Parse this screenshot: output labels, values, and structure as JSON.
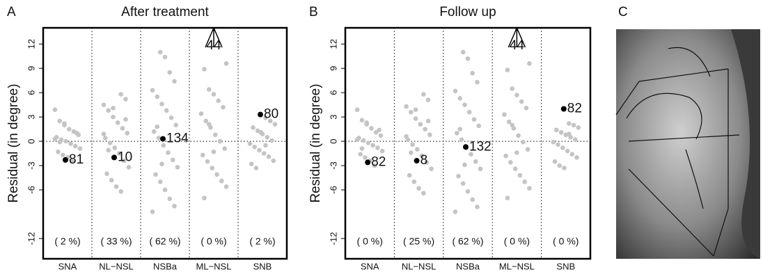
{
  "chart_data": [
    {
      "type": "strip",
      "panel_label": "A",
      "title": "After treatment",
      "y_label": "Residual (in degree)",
      "categories": [
        "SNA",
        "NL−NSL",
        "NSBa",
        "ML−NSL",
        "SNB"
      ],
      "ylim": [
        -14.5,
        14
      ],
      "yticks": [
        -12,
        -6,
        -3,
        0,
        3,
        6,
        9,
        12
      ],
      "color": "#c4c4c4",
      "values": [
        [
          3.9,
          2.5,
          2.0,
          1.5,
          1.2,
          0.8,
          0.5,
          0.2,
          0,
          -0.3,
          -0.6,
          -0.9,
          -1.3,
          -1.7,
          -2.0,
          -2.5,
          1.0,
          0.3,
          -0.1,
          2.2
        ],
        [
          5.8,
          5.2,
          4.5,
          3.8,
          3.0,
          2.3,
          1.6,
          1.0,
          0.4,
          -0.2,
          -0.8,
          -1.5,
          -2.4,
          -3.2,
          -4.0,
          -4.8,
          -5.6,
          -6.2,
          2.7,
          0.9,
          -1.1,
          4.1
        ],
        [
          11,
          10.4,
          8.5,
          7.4,
          6.3,
          5.5,
          4.6,
          3.8,
          2.9,
          2.0,
          1.2,
          0.4,
          -0.5,
          -1.4,
          -2.3,
          -3.2,
          -4.1,
          -5.0,
          -6.0,
          -7.1,
          -8.0,
          -8.7,
          1.8,
          -2.8
        ],
        [
          9.6,
          8.9,
          6.4,
          5.8,
          5.0,
          4.2,
          3.4,
          2.5,
          1.7,
          0.8,
          0,
          -0.9,
          -1.7,
          -2.5,
          -3.3,
          -4.1,
          -4.9,
          -5.6,
          -7.0,
          2.1,
          -1.3
        ],
        [
          2.9,
          2.5,
          2.1,
          1.7,
          1.3,
          0.9,
          0.5,
          0.1,
          -0.3,
          -0.7,
          -1.1,
          -1.5,
          -1.9,
          -2.4,
          -2.8,
          -3.3,
          1.1,
          -0.5
        ]
      ],
      "highlight_values": [
        -2.3,
        -2.0,
        0.3,
        null,
        3.3
      ],
      "highlight_labels": [
        "81",
        "10",
        "134",
        "44",
        "80"
      ],
      "percent_labels": [
        "( 2 %)",
        "( 33 %)",
        "( 62 %)",
        "( 0 %)",
        "( 2 %)"
      ]
    },
    {
      "type": "strip",
      "panel_label": "B",
      "title": "Follow up",
      "y_label": "Residual (in degree)",
      "categories": [
        "SNA",
        "NL−NSL",
        "NSBa",
        "ML−NSL",
        "SNB"
      ],
      "ylim": [
        -14.5,
        14
      ],
      "yticks": [
        -12,
        -6,
        -3,
        0,
        3,
        6,
        9,
        12
      ],
      "color": "#c4c4c4",
      "values": [
        [
          3.9,
          2.6,
          2.1,
          1.6,
          1.1,
          0.7,
          0.4,
          0.1,
          -0.2,
          -0.5,
          -0.8,
          -1.2,
          -1.6,
          -2.0,
          -2.4,
          -3.0,
          1.4,
          0.2,
          -0.9,
          2.3
        ],
        [
          5.8,
          5.1,
          4.3,
          3.6,
          2.8,
          2.1,
          1.5,
          0.8,
          0.2,
          -0.4,
          -1.0,
          -1.8,
          -2.6,
          -3.4,
          -4.2,
          -5.0,
          -5.8,
          -6.4,
          2.5,
          0.6,
          -1.4,
          3.9
        ],
        [
          11,
          10.2,
          8.4,
          7.3,
          6.2,
          5.3,
          4.5,
          3.6,
          2.7,
          1.9,
          1.0,
          0.2,
          -0.8,
          -1.6,
          -2.5,
          -3.4,
          -4.3,
          -5.2,
          -6.2,
          -7.2,
          -8.1,
          -8.7,
          1.5,
          -2.9
        ],
        [
          9.6,
          8.8,
          6.5,
          5.7,
          4.9,
          4.1,
          3.3,
          2.4,
          1.6,
          0.7,
          -0.1,
          -1.0,
          -1.8,
          -2.6,
          -3.4,
          -4.2,
          -5.0,
          -5.8,
          -7.0,
          2.0,
          -1.4
        ],
        [
          2.2,
          2.0,
          1.7,
          1.4,
          1.1,
          0.8,
          0.5,
          0.2,
          -0.1,
          -0.4,
          -0.8,
          -1.2,
          -1.6,
          -2.0,
          -2.5,
          -3.0,
          -3.3,
          0.9
        ]
      ],
      "highlight_values": [
        -2.6,
        -2.4,
        -0.7,
        null,
        4.0
      ],
      "highlight_labels": [
        "82",
        "8",
        "132",
        "44",
        "82"
      ],
      "percent_labels": [
        "( 0 %)",
        "( 25 %)",
        "( 62 %)",
        "( 0 %)",
        "( 0 %)"
      ]
    }
  ],
  "panel_c": {
    "label": "C"
  }
}
